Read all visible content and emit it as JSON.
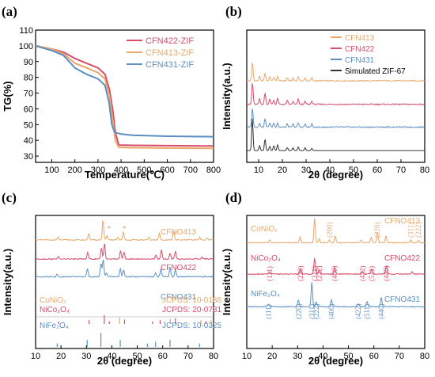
{
  "colors": {
    "orange": "#e8a86a",
    "red": "#d94b68",
    "blue": "#5b8fc2",
    "black": "#333333",
    "axis": "#000000"
  },
  "chart_data": [
    {
      "id": "a",
      "panel_label": "(a)",
      "type": "line",
      "xlabel": "Temperature(℃)",
      "ylabel": "TG(%)",
      "xlim": [
        30,
        800
      ],
      "ylim": [
        26,
        110
      ],
      "xticks": [
        100,
        200,
        300,
        400,
        500,
        600,
        700,
        800
      ],
      "yticks": [
        30,
        40,
        50,
        60,
        70,
        80,
        90,
        100,
        110
      ],
      "legend_position": "top-right",
      "series": [
        {
          "name": "CFN422-ZIF",
          "color": "red",
          "points": [
            [
              30,
              100
            ],
            [
              100,
              98
            ],
            [
              150,
              96
            ],
            [
              200,
              92
            ],
            [
              250,
              89
            ],
            [
              300,
              86
            ],
            [
              330,
              82
            ],
            [
              350,
              72
            ],
            [
              365,
              58
            ],
            [
              375,
              45
            ],
            [
              390,
              37
            ],
            [
              450,
              36.8
            ],
            [
              600,
              36.6
            ],
            [
              800,
              36.4
            ]
          ]
        },
        {
          "name": "CFN413-ZIF",
          "color": "orange",
          "points": [
            [
              30,
              100
            ],
            [
              100,
              98
            ],
            [
              150,
              95
            ],
            [
              200,
              89
            ],
            [
              250,
              86
            ],
            [
              300,
              83
            ],
            [
              330,
              79
            ],
            [
              350,
              68
            ],
            [
              365,
              52
            ],
            [
              375,
              40
            ],
            [
              390,
              35.5
            ],
            [
              450,
              35.3
            ],
            [
              600,
              35.1
            ],
            [
              800,
              34.9
            ]
          ]
        },
        {
          "name": "CFN431-ZIF",
          "color": "blue",
          "points": [
            [
              30,
              100
            ],
            [
              100,
              97
            ],
            [
              150,
              94
            ],
            [
              200,
              86
            ],
            [
              250,
              82
            ],
            [
              300,
              79
            ],
            [
              330,
              75
            ],
            [
              348,
              64
            ],
            [
              360,
              50
            ],
            [
              372,
              45
            ],
            [
              400,
              44
            ],
            [
              450,
              43.2
            ],
            [
              600,
              42.6
            ],
            [
              800,
              42.3
            ]
          ]
        }
      ]
    },
    {
      "id": "b",
      "panel_label": "(b)",
      "type": "line",
      "xlabel": "2θ (degree)",
      "ylabel": "Intensity(a.u.)",
      "xlim": [
        5,
        80
      ],
      "xticks": [
        10,
        20,
        30,
        40,
        50,
        60,
        70,
        80
      ],
      "legend_position": "top-right",
      "series": [
        {
          "name": "CFN413",
          "color": "orange",
          "baseline": 80.5,
          "peaks": [
            [
              7.4,
              13
            ],
            [
              10.4,
              3
            ],
            [
              12.7,
              5.5
            ],
            [
              14.7,
              3
            ],
            [
              16.4,
              2.5
            ],
            [
              18.0,
              3
            ],
            [
              22.1,
              2
            ],
            [
              24.5,
              2
            ],
            [
              26.7,
              3
            ],
            [
              29.6,
              2
            ],
            [
              32.4,
              2
            ]
          ]
        },
        {
          "name": "CFN422",
          "color": "red",
          "baseline": 64.5,
          "peaks": [
            [
              7.4,
              15
            ],
            [
              10.4,
              4
            ],
            [
              12.7,
              8
            ],
            [
              14.7,
              4
            ],
            [
              16.4,
              3
            ],
            [
              18.0,
              4
            ],
            [
              22.1,
              2.5
            ],
            [
              24.5,
              2
            ],
            [
              26.7,
              3.5
            ],
            [
              29.6,
              2
            ],
            [
              32.4,
              2
            ]
          ]
        },
        {
          "name": "CFN431",
          "color": "blue",
          "baseline": 49,
          "peaks": [
            [
              7.4,
              13
            ],
            [
              10.4,
              3
            ],
            [
              12.7,
              6
            ],
            [
              14.7,
              3
            ],
            [
              16.4,
              3
            ],
            [
              18.0,
              3
            ],
            [
              22.1,
              2
            ],
            [
              24.5,
              2
            ],
            [
              26.7,
              3
            ],
            [
              29.6,
              2
            ],
            [
              32.4,
              2
            ]
          ]
        },
        {
          "name": "Simulated ZIF-67",
          "color": "black",
          "baseline": 33,
          "peaks": [
            [
              7.35,
              22
            ],
            [
              10.4,
              3.5
            ],
            [
              12.7,
              8
            ],
            [
              14.7,
              3
            ],
            [
              16.4,
              3.5
            ],
            [
              18.0,
              4
            ],
            [
              22.1,
              2
            ],
            [
              24.5,
              2
            ],
            [
              26.7,
              2.5
            ],
            [
              29.6,
              2
            ],
            [
              32.4,
              1.5
            ]
          ]
        }
      ]
    },
    {
      "id": "c",
      "panel_label": "(c)",
      "type": "line",
      "xlabel": "2θ (degree)",
      "ylabel": "Intensity(a.u.)",
      "xlim": [
        10,
        80
      ],
      "xticks": [
        10,
        20,
        30,
        40,
        50,
        60,
        70,
        80
      ],
      "series": [
        {
          "name": "CFNO413",
          "color": "orange",
          "baseline": 82,
          "peaks": [
            [
              18.9,
              2
            ],
            [
              30.9,
              5
            ],
            [
              36.5,
              15
            ],
            [
              38.1,
              3
            ],
            [
              42.4,
              2
            ],
            [
              44.5,
              6
            ],
            [
              54.6,
              2
            ],
            [
              58.7,
              5
            ],
            [
              64.3,
              7
            ],
            [
              74.5,
              2
            ],
            [
              77.5,
              1.5
            ]
          ]
        },
        {
          "name": "CFNO422",
          "color": "red",
          "baseline": 68,
          "peaks": [
            [
              18.9,
              2
            ],
            [
              30.5,
              5
            ],
            [
              35.9,
              8
            ],
            [
              37.1,
              12
            ],
            [
              43.4,
              6
            ],
            [
              44.8,
              5
            ],
            [
              57.3,
              3
            ],
            [
              59.5,
              7
            ],
            [
              62.9,
              4
            ],
            [
              65.0,
              6
            ],
            [
              75.5,
              1.5
            ]
          ]
        },
        {
          "name": "CFNO431",
          "color": "blue",
          "baseline": 55,
          "peaks": [
            [
              18.5,
              2
            ],
            [
              30.4,
              6
            ],
            [
              35.7,
              10
            ],
            [
              36.6,
              13
            ],
            [
              37.9,
              3
            ],
            [
              43.3,
              6
            ],
            [
              44.6,
              5
            ],
            [
              57.2,
              3
            ],
            [
              59.3,
              6
            ],
            [
              62.9,
              7
            ],
            [
              65.0,
              5
            ]
          ]
        }
      ],
      "annotations": [
        {
          "text": "CFNO413",
          "series": 0
        },
        {
          "text": "CFNO422",
          "series": 1
        },
        {
          "text": "CFNO431",
          "series": 2
        }
      ],
      "references": [
        {
          "name": "CoNiO₂",
          "jcpds": "JCPDS: 10-0188",
          "color": "orange",
          "lines": [
            [
              37,
              0.35
            ],
            [
              43,
              0.5
            ],
            [
              63,
              0.4
            ],
            [
              75,
              0.3
            ],
            [
              79,
              0.3
            ]
          ]
        },
        {
          "name": "NiCo₂O₄",
          "jcpds": "JCPDS: 20-0781",
          "color": "red",
          "lines": [
            [
              19,
              0.2
            ],
            [
              31,
              0.3
            ],
            [
              37,
              0.7
            ],
            [
              39,
              0.2
            ],
            [
              45,
              0.35
            ],
            [
              56,
              0.2
            ],
            [
              59,
              0.3
            ],
            [
              65,
              0.45
            ],
            [
              77,
              0.2
            ]
          ]
        },
        {
          "name": "NiFe₂O₄",
          "jcpds": "JCPDS: 10-0325",
          "color": "blue",
          "lines": [
            [
              18.5,
              0.2
            ],
            [
              30.3,
              0.4
            ],
            [
              35.7,
              0.8
            ],
            [
              43.3,
              0.4
            ],
            [
              54,
              0.2
            ],
            [
              57.2,
              0.3
            ],
            [
              62.9,
              0.4
            ],
            [
              74.5,
              0.2
            ]
          ]
        }
      ]
    },
    {
      "id": "d",
      "panel_label": "(d)",
      "type": "line",
      "xlabel": "2θ (degree)",
      "ylabel": "Intensity(a.u.)",
      "xlim": [
        10,
        80
      ],
      "xticks": [
        10,
        20,
        30,
        40,
        50,
        60,
        70,
        80
      ],
      "series": [
        {
          "name": "CFNO413",
          "color": "orange",
          "baseline": 80,
          "peaks": [
            [
              19,
              2
            ],
            [
              31,
              4
            ],
            [
              36.7,
              18
            ],
            [
              38.5,
              3
            ],
            [
              42.5,
              2
            ],
            [
              44.8,
              5
            ],
            [
              55,
              2
            ],
            [
              59,
              4
            ],
            [
              61.4,
              8
            ],
            [
              64.8,
              5
            ],
            [
              74.5,
              2
            ],
            [
              77.5,
              2
            ]
          ]
        },
        {
          "name": "CFNO422",
          "color": "red",
          "baseline": 57,
          "peaks": [
            [
              19,
              2
            ],
            [
              31.1,
              4
            ],
            [
              36.7,
              12
            ],
            [
              38.5,
              3
            ],
            [
              44.6,
              5
            ],
            [
              55.5,
              2
            ],
            [
              59.1,
              4
            ],
            [
              64.9,
              6
            ],
            [
              75,
              1.5
            ]
          ]
        },
        {
          "name": "CFNO431",
          "color": "blue",
          "baseline": 33,
          "peaks": [
            [
              18.5,
              2
            ],
            [
              30.3,
              5
            ],
            [
              35.6,
              18
            ],
            [
              37.3,
              4
            ],
            [
              43.3,
              5
            ],
            [
              53.8,
              2
            ],
            [
              57.3,
              4
            ],
            [
              62.9,
              7
            ]
          ]
        }
      ],
      "labels": [
        {
          "text": "CoNiO₂",
          "series": 0,
          "kind": "phase"
        },
        {
          "text": "CFNO413",
          "series": 0,
          "kind": "sample"
        },
        {
          "text": "NiCo₂O₄",
          "series": 1,
          "kind": "phase"
        },
        {
          "text": "CFNO422",
          "series": 1,
          "kind": "sample"
        },
        {
          "text": "NiFe₂O₄",
          "series": 2,
          "kind": "phase"
        },
        {
          "text": "CFNO431",
          "series": 2,
          "kind": "sample"
        }
      ],
      "hkl": [
        {
          "text": "(200)",
          "series": 0,
          "x": 42.5
        },
        {
          "text": "(220)",
          "series": 0,
          "x": 61.4
        },
        {
          "text": "(311)",
          "series": 0,
          "x": 74.5
        },
        {
          "text": "(222)",
          "series": 0,
          "x": 77.5
        },
        {
          "text": "(111)",
          "series": 1,
          "x": 19
        },
        {
          "text": "(220)",
          "series": 1,
          "x": 31.1
        },
        {
          "text": "(311)",
          "series": 1,
          "x": 36.7
        },
        {
          "text": "(222)",
          "series": 1,
          "x": 38.5
        },
        {
          "text": "(400)",
          "series": 1,
          "x": 44.6
        },
        {
          "text": "(422)",
          "series": 1,
          "x": 55.5
        },
        {
          "text": "(511)",
          "series": 1,
          "x": 59.1
        },
        {
          "text": "(440)",
          "series": 1,
          "x": 64.9
        },
        {
          "text": "(111)",
          "series": 2,
          "x": 18.5
        },
        {
          "text": "(220)",
          "series": 2,
          "x": 30.3
        },
        {
          "text": "(311)",
          "series": 2,
          "x": 35.6
        },
        {
          "text": "(222)",
          "series": 2,
          "x": 37.3
        },
        {
          "text": "(400)",
          "series": 2,
          "x": 43.3
        },
        {
          "text": "(422)",
          "series": 2,
          "x": 53.8
        },
        {
          "text": "(511)",
          "series": 2,
          "x": 57.3
        },
        {
          "text": "(440)",
          "series": 2,
          "x": 62.9
        }
      ]
    }
  ]
}
